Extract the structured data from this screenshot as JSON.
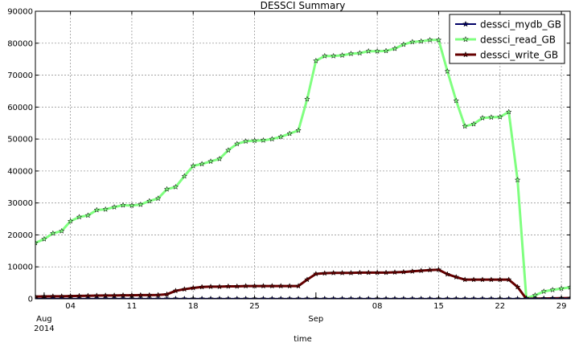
{
  "chart_data": {
    "type": "line",
    "title": "DESSCI Summary",
    "xlabel": "time",
    "ylabel": "",
    "x_start": "2014-07-31",
    "xlim": [
      "2014-07-31",
      "2014-09-30"
    ],
    "ylim": [
      0,
      90000
    ],
    "yticks": [
      0,
      10000,
      20000,
      30000,
      40000,
      50000,
      60000,
      70000,
      80000,
      90000
    ],
    "xticks": [
      {
        "date": "2014-08-04",
        "label": "04"
      },
      {
        "date": "2014-08-11",
        "label": "11"
      },
      {
        "date": "2014-08-18",
        "label": "18"
      },
      {
        "date": "2014-08-25",
        "label": "25"
      },
      {
        "date": "2014-09-08",
        "label": "08"
      },
      {
        "date": "2014-09-15",
        "label": "15"
      },
      {
        "date": "2014-09-22",
        "label": "22"
      },
      {
        "date": "2014-09-29",
        "label": "29"
      }
    ],
    "major_labels": [
      {
        "date": "2014-08-01",
        "lines": [
          "Aug",
          "2014"
        ]
      },
      {
        "date": "2014-09-01",
        "lines": [
          "Sep"
        ]
      }
    ],
    "grid": true,
    "legend_position": "top-right",
    "series": [
      {
        "name": "dessci_mydb_GB",
        "color": "#000066",
        "line_width": 2,
        "values": [
          40,
          40,
          40,
          40,
          40,
          40,
          40,
          40,
          40,
          40,
          40,
          40,
          40,
          40,
          40,
          40,
          40,
          40,
          40,
          40,
          40,
          40,
          40,
          40,
          40,
          40,
          40,
          40,
          40,
          40,
          40,
          40,
          40,
          40,
          40,
          40,
          40,
          40,
          40,
          40,
          40,
          40,
          40,
          40,
          40,
          40,
          40,
          40,
          40,
          40,
          40,
          40,
          40,
          40,
          40,
          40,
          40,
          40,
          40,
          40,
          40,
          40,
          40
        ]
      },
      {
        "name": "dessci_read_GB",
        "color": "#80ff80",
        "line_width": 3,
        "values": [
          17500,
          18700,
          20500,
          21200,
          24300,
          25600,
          26100,
          27800,
          28000,
          28700,
          29300,
          29200,
          29500,
          30600,
          31400,
          34300,
          35000,
          38400,
          41600,
          42200,
          43000,
          43800,
          46500,
          48500,
          49300,
          49500,
          49600,
          50000,
          50700,
          51700,
          52700,
          62500,
          74500,
          76000,
          76000,
          76200,
          76700,
          76900,
          77500,
          77500,
          77600,
          78300,
          79600,
          80400,
          80600,
          81000,
          81000,
          71200,
          62000,
          54000,
          54700,
          56600,
          56800,
          56900,
          58500,
          37200,
          200,
          1100,
          2300,
          2800,
          3200,
          3600,
          5500
        ]
      },
      {
        "name": "dessci_write_GB",
        "color": "#660000",
        "line_width": 3,
        "values": [
          700,
          750,
          800,
          800,
          850,
          900,
          950,
          1000,
          1050,
          1050,
          1100,
          1100,
          1150,
          1150,
          1200,
          1400,
          2500,
          3000,
          3400,
          3700,
          3800,
          3800,
          3900,
          3900,
          4000,
          4000,
          4000,
          4000,
          4000,
          4000,
          4000,
          6000,
          7800,
          8000,
          8100,
          8100,
          8100,
          8200,
          8200,
          8200,
          8200,
          8300,
          8400,
          8600,
          8800,
          9000,
          9100,
          7700,
          6800,
          6000,
          6000,
          6000,
          6000,
          6000,
          6000,
          3700,
          0,
          50,
          100,
          150,
          200,
          250,
          300
        ]
      }
    ]
  }
}
